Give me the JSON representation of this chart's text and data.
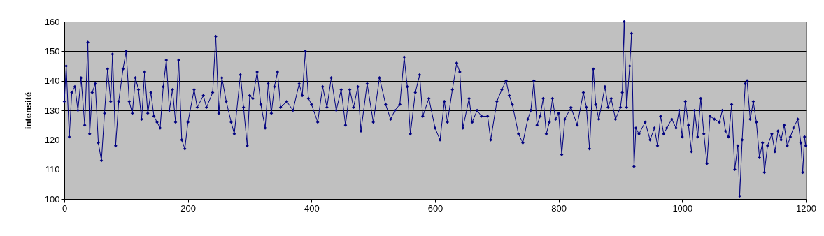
{
  "chart_data": {
    "type": "line",
    "ylabel": "intensité",
    "xlim": [
      0,
      1200
    ],
    "xticks": [
      0,
      200,
      400,
      600,
      800,
      1000,
      1200
    ],
    "ylim": [
      100,
      160
    ],
    "yticks": [
      100,
      110,
      120,
      130,
      140,
      150,
      160
    ],
    "grid": "y",
    "marker": "diamond",
    "x": [
      0,
      3,
      8,
      12,
      17,
      22,
      27,
      33,
      38,
      41,
      45,
      50,
      55,
      60,
      65,
      70,
      75,
      78,
      83,
      88,
      95,
      100,
      105,
      110,
      115,
      120,
      125,
      130,
      135,
      140,
      145,
      150,
      155,
      160,
      165,
      170,
      175,
      180,
      185,
      190,
      195,
      200,
      210,
      215,
      225,
      230,
      240,
      245,
      250,
      255,
      262,
      270,
      275,
      285,
      290,
      296,
      300,
      305,
      312,
      318,
      325,
      330,
      335,
      340,
      345,
      350,
      360,
      370,
      380,
      385,
      390,
      395,
      400,
      410,
      418,
      425,
      432,
      440,
      448,
      455,
      462,
      468,
      475,
      480,
      490,
      500,
      510,
      520,
      528,
      535,
      543,
      550,
      555,
      560,
      568,
      575,
      580,
      590,
      600,
      608,
      615,
      620,
      628,
      635,
      640,
      645,
      655,
      660,
      668,
      675,
      685,
      690,
      700,
      708,
      715,
      720,
      725,
      735,
      742,
      750,
      755,
      760,
      765,
      770,
      775,
      780,
      785,
      790,
      795,
      800,
      805,
      810,
      820,
      830,
      840,
      845,
      850,
      856,
      860,
      865,
      875,
      880,
      885,
      892,
      900,
      903,
      906,
      910,
      915,
      918,
      922,
      925,
      930,
      940,
      948,
      955,
      960,
      965,
      970,
      975,
      983,
      990,
      995,
      1000,
      1005,
      1010,
      1015,
      1020,
      1025,
      1030,
      1035,
      1040,
      1045,
      1052,
      1060,
      1065,
      1070,
      1075,
      1080,
      1085,
      1090,
      1093,
      1097,
      1102,
      1105,
      1110,
      1115,
      1120,
      1125,
      1130,
      1133,
      1138,
      1145,
      1150,
      1155,
      1160,
      1165,
      1170,
      1175,
      1180,
      1187,
      1192,
      1195,
      1198,
      1200
    ],
    "series": [
      {
        "color": "#000080",
        "values": [
          133,
          145,
          121,
          136,
          138,
          130,
          141,
          125,
          153,
          122,
          136,
          139,
          119,
          113,
          129,
          144,
          133,
          149,
          118,
          133,
          144,
          150,
          133,
          129,
          141,
          137,
          127,
          143,
          129,
          136,
          128,
          126,
          124,
          138,
          147,
          130,
          137,
          126,
          147,
          120,
          117,
          126,
          137,
          131,
          135,
          131,
          136,
          155,
          129,
          141,
          133,
          126,
          122,
          142,
          131,
          118,
          135,
          134,
          143,
          132,
          124,
          139,
          129,
          138,
          143,
          131,
          133,
          130,
          139,
          135,
          150,
          134,
          132,
          126,
          138,
          131,
          141,
          130,
          137,
          125,
          137,
          131,
          138,
          123,
          139,
          126,
          141,
          132,
          127,
          130,
          132,
          148,
          138,
          122,
          136,
          142,
          128,
          134,
          124,
          120,
          133,
          126,
          137,
          146,
          143,
          124,
          134,
          126,
          130,
          128,
          128,
          120,
          133,
          137,
          140,
          135,
          132,
          122,
          119,
          127,
          130,
          140,
          125,
          128,
          134,
          122,
          126,
          134,
          127,
          129,
          115,
          127,
          131,
          125,
          136,
          131,
          117,
          144,
          132,
          127,
          138,
          131,
          134,
          127,
          131,
          136,
          160,
          131,
          145,
          156,
          111,
          124,
          122,
          126,
          120,
          124,
          118,
          128,
          122,
          124,
          127,
          124,
          130,
          121,
          133,
          125,
          116,
          130,
          121,
          134,
          122,
          112,
          128,
          127,
          126,
          130,
          123,
          121,
          132,
          110,
          118,
          101,
          120,
          139,
          140,
          127,
          133,
          126,
          114,
          119,
          109,
          118,
          122,
          116,
          123,
          120,
          125,
          118,
          121,
          124,
          127,
          119,
          109,
          121,
          118
        ]
      }
    ]
  }
}
